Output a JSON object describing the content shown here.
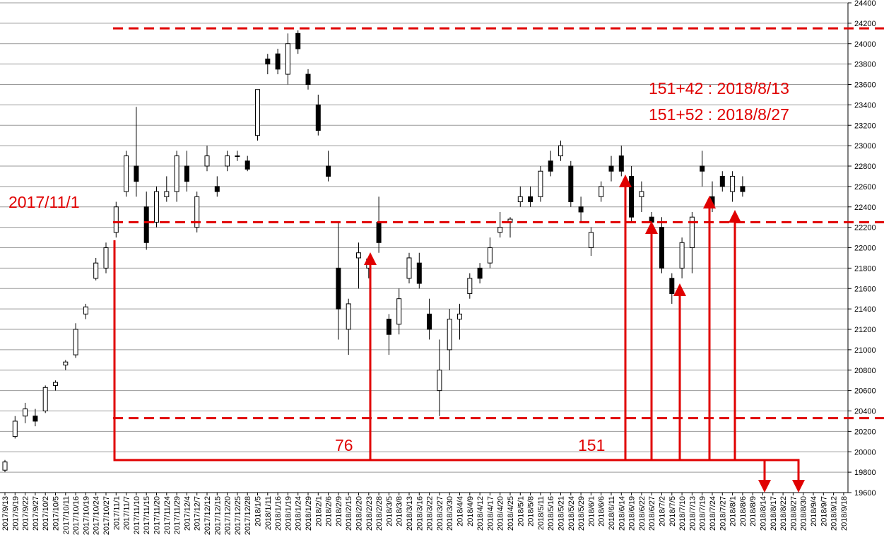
{
  "chart_data": {
    "type": "candlestick",
    "categories": [
      "2017/9/13",
      "2017/9/19",
      "2017/9/22",
      "2017/9/27",
      "2017/10/2",
      "2017/10/5",
      "2017/10/11",
      "2017/10/16",
      "2017/10/19",
      "2017/10/24",
      "2017/10/27",
      "2017/11/1",
      "2017/11/7",
      "2017/11/10",
      "2017/11/15",
      "2017/11/20",
      "2017/11/24",
      "2017/11/29",
      "2017/12/4",
      "2017/12/7",
      "2017/12/12",
      "2017/12/15",
      "2017/12/20",
      "2017/12/25",
      "2017/12/28",
      "2018/1/5",
      "2018/1/11",
      "2018/1/16",
      "2018/1/19",
      "2018/1/24",
      "2018/1/29",
      "2018/2/1",
      "2018/2/6",
      "2018/2/9",
      "2018/2/15",
      "2018/2/20",
      "2018/2/23",
      "2018/2/28",
      "2018/3/5",
      "2018/3/8",
      "2018/3/13",
      "2018/3/16",
      "2018/3/22",
      "2018/3/27",
      "2018/3/30",
      "2018/4/4",
      "2018/4/9",
      "2018/4/12",
      "2018/4/17",
      "2018/4/20",
      "2018/4/25",
      "2018/5/1",
      "2018/5/8",
      "2018/5/11",
      "2018/5/16",
      "2018/5/21",
      "2018/5/24",
      "2018/5/29",
      "2018/6/1",
      "2018/6/6",
      "2018/6/11",
      "2018/6/14",
      "2018/6/19",
      "2018/6/22",
      "2018/6/27",
      "2018/7/2",
      "2018/7/5",
      "2018/7/10",
      "2018/7/13",
      "2018/7/19",
      "2018/7/24",
      "2018/7/27",
      "2018/8/1",
      "2018/8/6",
      "2018/8/9",
      "2018/8/14",
      "2018/8/17",
      "2018/8/22",
      "2018/8/27",
      "2018/8/30",
      "2018/9/4",
      "2018/9/7",
      "2018/9/12",
      "2018/9/18"
    ],
    "open": [
      19820,
      20150,
      20350,
      20350,
      20400,
      20650,
      20850,
      20950,
      21350,
      21700,
      21800,
      22150,
      22550,
      22800,
      22400,
      22250,
      22500,
      22550,
      22800,
      22200,
      22800,
      22600,
      22800,
      22900,
      22850,
      23100,
      23850,
      23900,
      23700,
      24100,
      23700,
      23400,
      22800,
      21800,
      21200,
      21900,
      21800,
      22250,
      21300,
      21250,
      21700,
      21850,
      21350,
      20600,
      21000,
      21300,
      21550,
      21800,
      21850,
      22150,
      22250,
      22450,
      22500,
      22500,
      22850,
      22900,
      22800,
      22400,
      22000,
      22500,
      22800,
      22900,
      22700,
      22500,
      22300,
      22200,
      21700,
      21800,
      22000,
      22800,
      22500,
      22700,
      22550,
      22600,
      null,
      null,
      null,
      null,
      null,
      null,
      null,
      null,
      null,
      null
    ],
    "high": [
      19920,
      20350,
      20480,
      20420,
      20650,
      20700,
      20900,
      21260,
      21450,
      21900,
      22050,
      22450,
      22950,
      23380,
      22550,
      22600,
      22700,
      22950,
      22950,
      22550,
      23000,
      22700,
      22950,
      22950,
      22900,
      23550,
      23900,
      23950,
      24100,
      24130,
      23750,
      23500,
      22950,
      22250,
      21500,
      22050,
      21900,
      22500,
      21350,
      21600,
      21950,
      21950,
      21500,
      21100,
      21400,
      21450,
      21750,
      21850,
      22100,
      22350,
      22300,
      22600,
      22600,
      22800,
      22950,
      23050,
      22850,
      22500,
      22200,
      22650,
      22900,
      23000,
      22800,
      22650,
      22350,
      22300,
      21750,
      22100,
      22350,
      22950,
      22650,
      22750,
      22750,
      22700,
      null,
      null,
      null,
      null,
      null,
      null,
      null,
      null,
      null,
      null
    ],
    "low": [
      19800,
      20130,
      20280,
      20250,
      20380,
      20600,
      20800,
      20920,
      21300,
      21680,
      21750,
      22100,
      22500,
      22500,
      21980,
      22200,
      22450,
      22450,
      22550,
      22150,
      22750,
      22500,
      22750,
      22850,
      22750,
      23050,
      23700,
      23700,
      23600,
      23900,
      23550,
      23100,
      22650,
      21100,
      20950,
      21600,
      21700,
      21950,
      20950,
      21150,
      21650,
      21600,
      21100,
      20350,
      20800,
      21100,
      21500,
      21650,
      21800,
      22100,
      22100,
      22400,
      22400,
      22450,
      22700,
      22850,
      22400,
      22250,
      21920,
      22450,
      22650,
      22700,
      22250,
      22350,
      22050,
      21750,
      21450,
      21700,
      21750,
      22600,
      22350,
      22550,
      22450,
      22500,
      null,
      null,
      null,
      null,
      null,
      null,
      null,
      null,
      null,
      null
    ],
    "close": [
      19900,
      20300,
      20420,
      20300,
      20630,
      20680,
      20880,
      21200,
      21420,
      21850,
      22000,
      22400,
      22900,
      22650,
      22050,
      22550,
      22550,
      22900,
      22650,
      22500,
      22900,
      22550,
      22900,
      22900,
      22770,
      23550,
      23800,
      23750,
      24000,
      23950,
      23600,
      23150,
      22700,
      21400,
      21450,
      21950,
      21890,
      22050,
      21150,
      21500,
      21900,
      21650,
      21200,
      20800,
      21300,
      21350,
      21700,
      21700,
      22000,
      22200,
      22280,
      22500,
      22450,
      22750,
      22750,
      23000,
      22450,
      22350,
      22150,
      22600,
      22750,
      22750,
      22300,
      22550,
      22250,
      21800,
      21550,
      22050,
      22300,
      22750,
      22400,
      22600,
      22700,
      22550,
      null,
      null,
      null,
      null,
      null,
      null,
      null,
      null,
      null,
      null
    ],
    "ylim": [
      19600,
      24400
    ],
    "yticks": [
      19600,
      19800,
      20000,
      20200,
      20400,
      20600,
      20800,
      21000,
      21200,
      21400,
      21600,
      21800,
      22000,
      22200,
      22400,
      22600,
      22800,
      23000,
      23200,
      23400,
      23600,
      23800,
      24000,
      24200,
      24400
    ],
    "grid": true,
    "reference_lines": [
      24150,
      22250,
      20330
    ],
    "annotations": [
      "2017/11/1",
      "76",
      "151",
      "151+42 : 2018/8/13",
      "151+52 : 2018/8/27"
    ]
  }
}
